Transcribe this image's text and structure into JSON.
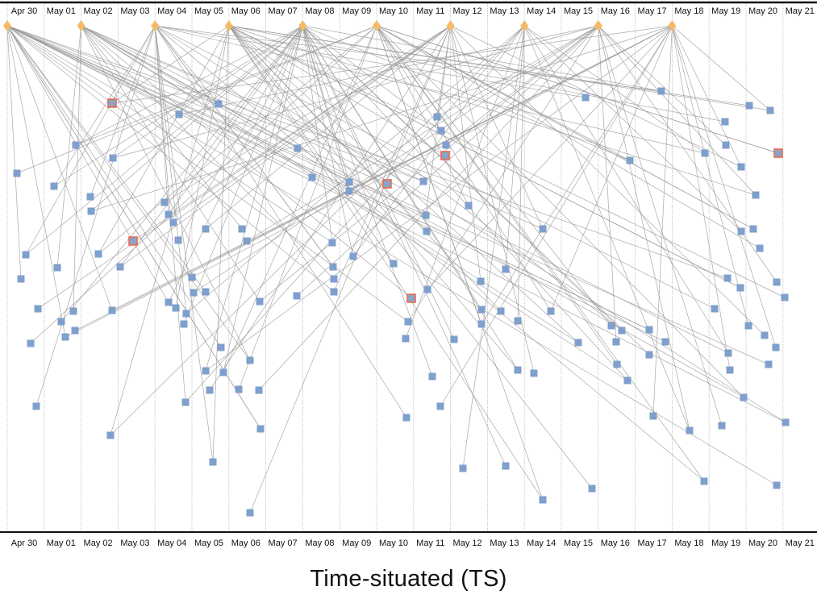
{
  "caption": "Time-situated (TS)",
  "colors": {
    "axis": "#111111",
    "gridline": "#b8b8b8",
    "link": "#9a9a9a",
    "hub": "#f5b967",
    "node": "#7f9fcc",
    "highlight_border": "#ee6a4c",
    "highlight_fill": "#8aa3c9"
  },
  "chart_data": {
    "type": "timeline-network",
    "dates": [
      "Apr 30",
      "May 01",
      "May 02",
      "May 03",
      "May 04",
      "May 05",
      "May 06",
      "May 07",
      "May 08",
      "May 09",
      "May 10",
      "May 11",
      "May 12",
      "May 13",
      "May 14",
      "May 15",
      "May 16",
      "May 17",
      "May 18",
      "May 19",
      "May 20",
      "May 21"
    ],
    "hub_shape": "diamond",
    "node_shape": "square",
    "hubs": [
      "Apr 30",
      "May 02",
      "May 04",
      "May 06",
      "May 08",
      "May 10",
      "May 12",
      "May 14",
      "May 16",
      "May 18"
    ]
  }
}
